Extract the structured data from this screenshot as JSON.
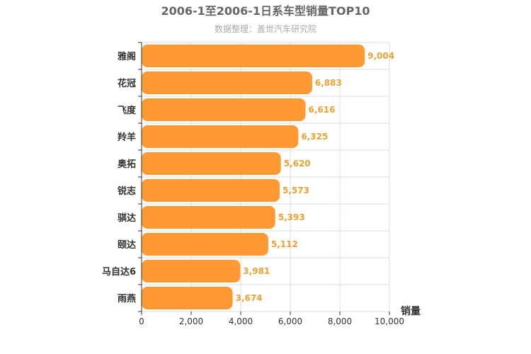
{
  "chart_data": {
    "type": "bar",
    "orientation": "horizontal",
    "title": "2006-1至2006-1日系车型销量TOP10",
    "subtitle": "数据整理：盖世汽车研究院",
    "categories": [
      "雅阁",
      "花冠",
      "飞度",
      "羚羊",
      "奥拓",
      "锐志",
      "骐达",
      "颐达",
      "马自达6",
      "雨燕"
    ],
    "values": [
      9004,
      6883,
      6616,
      6325,
      5620,
      5573,
      5393,
      5112,
      3981,
      3674
    ],
    "value_labels": [
      "9,004",
      "6,883",
      "6,616",
      "6,325",
      "5,620",
      "5,573",
      "5,393",
      "5,112",
      "3,981",
      "3,674"
    ],
    "xlabel": "销量",
    "xlim": [
      0,
      10000
    ],
    "xticks": [
      0,
      2000,
      4000,
      6000,
      8000,
      10000
    ],
    "xtick_labels": [
      "0",
      "2,000",
      "4,000",
      "6,000",
      "8,000",
      "10,000"
    ],
    "grid": true,
    "bar_color": "#ff9933",
    "value_label_color": "#f0a030"
  }
}
